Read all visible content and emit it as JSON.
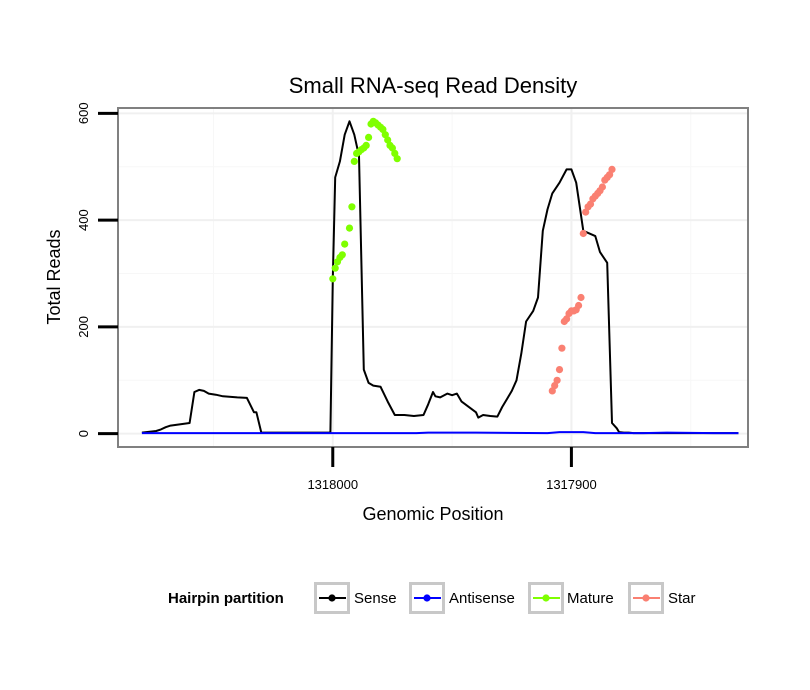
{
  "chart_data": {
    "type": "line",
    "title": "Small RNA-seq Read Density",
    "xlabel": "Genomic Position",
    "ylabel": "Total Reads",
    "xlim": [
      1318090,
      1317826
    ],
    "ylim": [
      -25,
      610
    ],
    "x_ticks": [
      1318000,
      1317900
    ],
    "x_tick_labels": [
      "1318000",
      "1317900"
    ],
    "y_ticks": [
      0,
      200,
      400,
      600
    ],
    "y_tick_labels": [
      "0",
      "200",
      "400",
      "600"
    ],
    "grid": true,
    "legend": {
      "title": "Hairpin partition",
      "placement": "bottom",
      "entries": [
        {
          "name": "Sense",
          "color": "#000000"
        },
        {
          "name": "Antisense",
          "color": "#0000ff"
        },
        {
          "name": "Mature",
          "color": "#7fff00"
        },
        {
          "name": "Star",
          "color": "#fa8072"
        }
      ]
    },
    "series": [
      {
        "name": "Sense",
        "color": "#000000",
        "style": "line",
        "x": [
          1318080,
          1318074,
          1318072,
          1318070,
          1318068,
          1318063,
          1318060,
          1318058,
          1318056,
          1318054,
          1318052,
          1318049,
          1318046,
          1318040,
          1318036,
          1318033,
          1318032,
          1318030,
          1318030,
          1318010,
          1318001,
          1318000,
          1317999,
          1317997,
          1317995,
          1317993,
          1317991,
          1317989,
          1317987,
          1317985,
          1317983,
          1317980,
          1317977,
          1317974,
          1317970,
          1317966,
          1317962,
          1317960,
          1317958,
          1317957,
          1317955,
          1317952,
          1317950,
          1317948,
          1317946,
          1317940,
          1317939,
          1317937,
          1317934,
          1317931,
          1317929,
          1317927,
          1317925,
          1317923,
          1317921,
          1317919,
          1317916,
          1317914,
          1317912,
          1317910,
          1317908,
          1317905,
          1317902,
          1317900,
          1317898,
          1317895,
          1317890,
          1317888,
          1317885,
          1317883,
          1317881,
          1317880,
          1317878,
          1317876,
          1317874,
          1317872,
          1317870,
          1317868,
          1317866,
          1317864,
          1317862,
          1317860,
          1317858,
          1317856,
          1317855,
          1317852,
          1317850,
          1317840,
          1317830
        ],
        "y": [
          2,
          5,
          8,
          12,
          15,
          18,
          20,
          78,
          82,
          80,
          75,
          73,
          70,
          68,
          67,
          40,
          40,
          3,
          2,
          2,
          2,
          290,
          480,
          510,
          560,
          585,
          560,
          520,
          120,
          95,
          90,
          88,
          60,
          35,
          35,
          33,
          35,
          55,
          78,
          70,
          68,
          75,
          72,
          75,
          60,
          40,
          30,
          35,
          33,
          32,
          50,
          65,
          80,
          100,
          150,
          210,
          230,
          255,
          380,
          420,
          450,
          470,
          495,
          495,
          470,
          380,
          370,
          340,
          320,
          20,
          10,
          3,
          2,
          2,
          1,
          1,
          1,
          1,
          1,
          1,
          1,
          1,
          1,
          1,
          1,
          1,
          1,
          1,
          1
        ]
      },
      {
        "name": "Antisense",
        "color": "#0000ff",
        "style": "line",
        "x": [
          1318080,
          1318020,
          1317980,
          1317965,
          1317960,
          1317940,
          1317910,
          1317905,
          1317895,
          1317890,
          1317870,
          1317860,
          1317840,
          1317830
        ],
        "y": [
          1,
          1,
          1,
          1,
          2,
          2,
          1,
          3,
          3,
          1,
          1,
          2,
          1,
          1
        ]
      },
      {
        "name": "Mature",
        "color": "#7fff00",
        "style": "points",
        "x": [
          1318000,
          1317999,
          1317998,
          1317997,
          1317996,
          1317995,
          1317993,
          1317992,
          1317991,
          1317990,
          1317989,
          1317988,
          1317987,
          1317986,
          1317985,
          1317984,
          1317983,
          1317982,
          1317981,
          1317980,
          1317979,
          1317978,
          1317977,
          1317976,
          1317975,
          1317974,
          1317973
        ],
        "y": [
          290,
          310,
          322,
          330,
          335,
          355,
          385,
          425,
          510,
          525,
          528,
          532,
          535,
          540,
          555,
          580,
          585,
          582,
          578,
          574,
          570,
          560,
          550,
          540,
          535,
          525,
          515
        ]
      },
      {
        "name": "Star",
        "color": "#fa8072",
        "style": "points",
        "x": [
          1317908,
          1317907,
          1317906,
          1317905,
          1317904,
          1317903,
          1317902,
          1317901,
          1317900,
          1317899,
          1317898,
          1317897,
          1317896,
          1317895,
          1317894,
          1317893,
          1317892,
          1317891,
          1317890,
          1317889,
          1317888,
          1317887,
          1317886,
          1317885,
          1317884,
          1317883
        ],
        "y": [
          80,
          90,
          100,
          120,
          160,
          210,
          215,
          225,
          230,
          230,
          232,
          240,
          255,
          375,
          415,
          425,
          430,
          440,
          445,
          450,
          455,
          462,
          475,
          480,
          485,
          495
        ]
      }
    ]
  }
}
